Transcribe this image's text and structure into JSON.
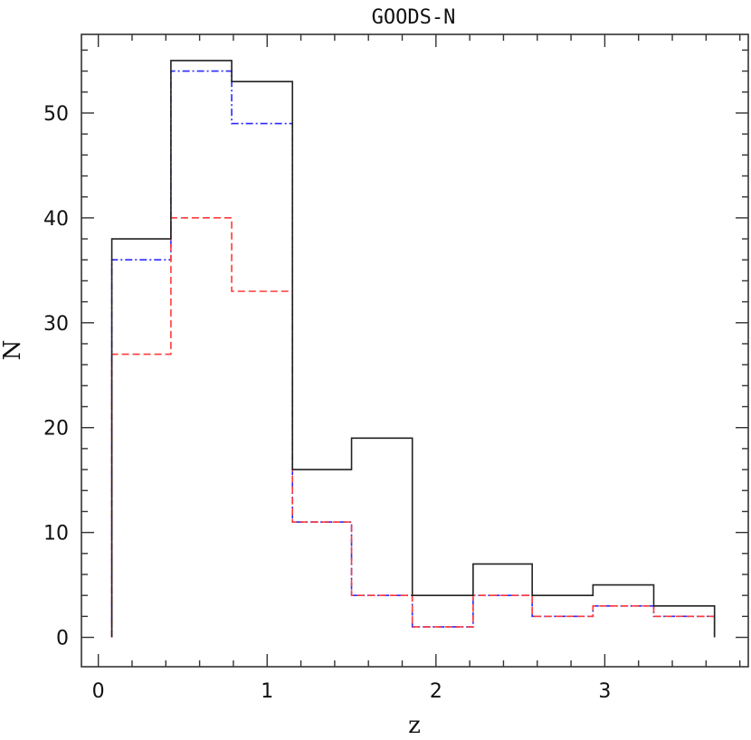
{
  "chart_data": {
    "type": "histogram",
    "title": "GOODS-N",
    "xlabel": "z",
    "ylabel": "N",
    "xlim": [
      -0.1,
      3.85
    ],
    "ylim": [
      -2.8,
      57.5
    ],
    "x_ticks": [
      0,
      1,
      2,
      3
    ],
    "y_ticks": [
      0,
      10,
      20,
      30,
      40,
      50
    ],
    "x_minor_step": 0.2,
    "y_minor_step": 2,
    "bin_edges": [
      0.08,
      0.43,
      0.79,
      1.15,
      1.5,
      1.86,
      2.22,
      2.57,
      2.93,
      3.29,
      3.65
    ],
    "grid": false,
    "legend": "none",
    "series": [
      {
        "style": "solid",
        "color": "#222222",
        "values": [
          38,
          55,
          53,
          16,
          19,
          4,
          7,
          4,
          5,
          3
        ]
      },
      {
        "style": "dashed",
        "color": "#ff3b3b",
        "values": [
          27,
          40,
          33,
          11,
          4,
          1,
          4,
          2,
          3,
          2
        ]
      },
      {
        "style": "dash-dot",
        "color": "#2a2aff",
        "values": [
          36,
          54,
          49,
          11,
          4,
          1,
          4,
          2,
          3,
          2
        ]
      }
    ]
  }
}
